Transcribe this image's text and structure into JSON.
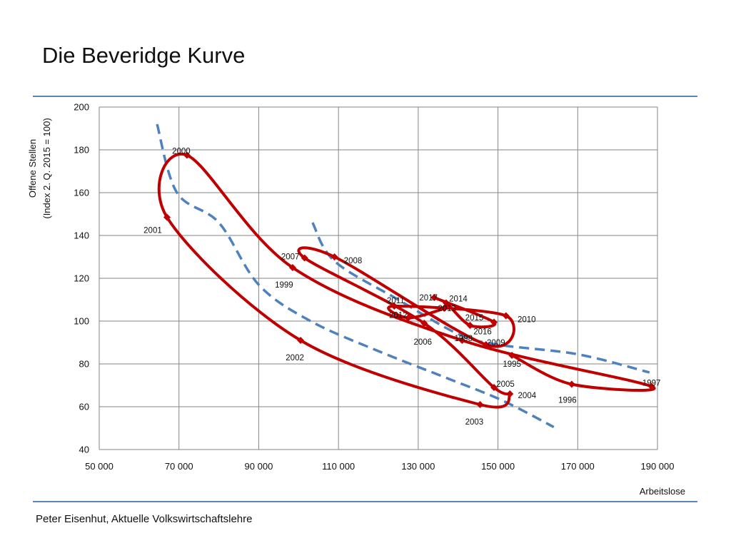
{
  "slide": {
    "title": "Die Beveridge Kurve",
    "footer": "Peter Eisenhut, Aktuelle Volkswirtschaftslehre"
  },
  "chart_data": {
    "type": "line",
    "xlabel": "Arbeitslose",
    "ylabel_lines": [
      "Offene Stellen",
      "(Index 2. Q. 2015 = 100)"
    ],
    "xlim": [
      50000,
      190000
    ],
    "ylim": [
      40,
      200
    ],
    "x_ticks": [
      50000,
      70000,
      90000,
      110000,
      130000,
      150000,
      170000,
      190000
    ],
    "x_tick_labels": [
      "50 000",
      "70 000",
      "90 000",
      "110 000",
      "130 000",
      "150 000",
      "170 000",
      "190 000"
    ],
    "y_ticks": [
      40,
      60,
      80,
      100,
      120,
      140,
      160,
      180,
      200
    ],
    "y_tick_labels": [
      "40",
      "60",
      "80",
      "100",
      "120",
      "140",
      "160",
      "180",
      "200"
    ],
    "grid": true,
    "colors": {
      "series": "#c00000",
      "trend": "#4f81bd",
      "grid": "#868686",
      "rule": "#5b86b5"
    },
    "series": [
      {
        "points": [
          {
            "year": "1995",
            "x": 153500,
            "y": 84
          },
          {
            "year": "1996",
            "x": 168500,
            "y": 70.5
          },
          {
            "year": "1997",
            "x": 188500,
            "y": 69.5
          },
          {
            "year": "1998",
            "x": 141000,
            "y": 91
          },
          {
            "year": "1999",
            "x": 98500,
            "y": 125
          },
          {
            "year": "2000",
            "x": 72000,
            "y": 177.5
          },
          {
            "year": "2001",
            "x": 67000,
            "y": 148.5
          },
          {
            "year": "2002",
            "x": 100500,
            "y": 91
          },
          {
            "year": "2003",
            "x": 145500,
            "y": 61
          },
          {
            "year": "2004",
            "x": 153000,
            "y": 66
          },
          {
            "year": "2005",
            "x": 149000,
            "y": 69
          },
          {
            "year": "2006",
            "x": 131500,
            "y": 99
          },
          {
            "year": "2007",
            "x": 101500,
            "y": 129.5
          },
          {
            "year": "2008",
            "x": 109000,
            "y": 130
          },
          {
            "year": "2009",
            "x": 147000,
            "y": 89
          },
          {
            "year": "2010",
            "x": 152000,
            "y": 102.5
          },
          {
            "year": "2011",
            "x": 124000,
            "y": 107
          },
          {
            "year": "2012",
            "x": 127500,
            "y": 101.5
          },
          {
            "year": "2013",
            "x": 136500,
            "y": 106
          },
          {
            "year": "2014",
            "x": 137000,
            "y": 108.5
          },
          {
            "year": "2015",
            "x": 143000,
            "y": 98
          },
          {
            "year": "2016",
            "x": 149000,
            "y": 99.5
          },
          {
            "year": "2017",
            "x": 134000,
            "y": 111
          }
        ]
      }
    ],
    "trendlines": [
      {
        "points": [
          [
            64500,
            192
          ],
          [
            69500,
            160
          ],
          [
            80000,
            146
          ],
          [
            90000,
            117
          ],
          [
            103000,
            100
          ],
          [
            120000,
            86
          ],
          [
            137000,
            73.5
          ],
          [
            151000,
            63
          ],
          [
            164000,
            50.5
          ]
        ]
      },
      {
        "points": [
          [
            103500,
            146
          ],
          [
            109000,
            128
          ],
          [
            125000,
            110
          ],
          [
            140000,
            94
          ],
          [
            150000,
            89
          ],
          [
            170000,
            84.5
          ],
          [
            188000,
            76
          ]
        ]
      }
    ]
  }
}
